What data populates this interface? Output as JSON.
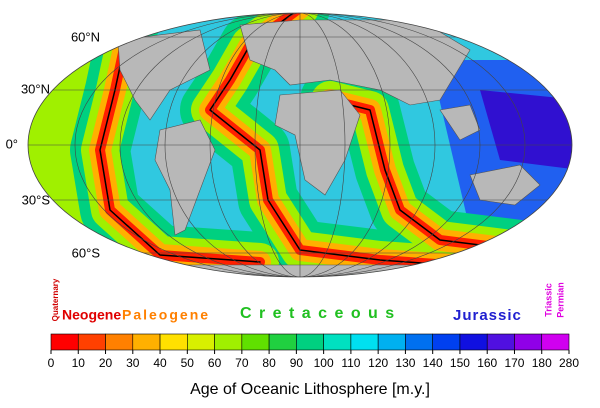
{
  "map": {
    "latitude_labels": [
      "60°N",
      "30°N",
      "0°",
      "30°S",
      "60°S"
    ],
    "periods": [
      {
        "name": "Quaternary",
        "color": "#d00000"
      },
      {
        "name": "Neogene",
        "color": "#e00000"
      },
      {
        "name": "Paleogene",
        "color": "#ff8000"
      },
      {
        "name": "C r e t a c e o u s",
        "color": "#20c020"
      },
      {
        "name": "Jurassic",
        "color": "#2020d0"
      },
      {
        "name": "Triassic",
        "color": "#e000e0"
      },
      {
        "name": "Permian",
        "color": "#e000e0"
      }
    ],
    "colorbar": {
      "ticks": [
        0,
        10,
        20,
        30,
        40,
        50,
        60,
        70,
        80,
        90,
        100,
        110,
        120,
        130,
        140,
        150,
        160,
        170,
        180,
        280
      ],
      "colors": [
        "#ff0000",
        "#ff4000",
        "#ff8000",
        "#ffb000",
        "#ffe000",
        "#d8f000",
        "#a0f000",
        "#60e000",
        "#20d040",
        "#00d080",
        "#00e0c0",
        "#00e0f0",
        "#00b0f0",
        "#0070f0",
        "#0040f0",
        "#1010e0",
        "#5010e0",
        "#9000e8",
        "#d000f0"
      ],
      "label": "Age of Oceanic Lithosphere [m.y.]"
    }
  }
}
